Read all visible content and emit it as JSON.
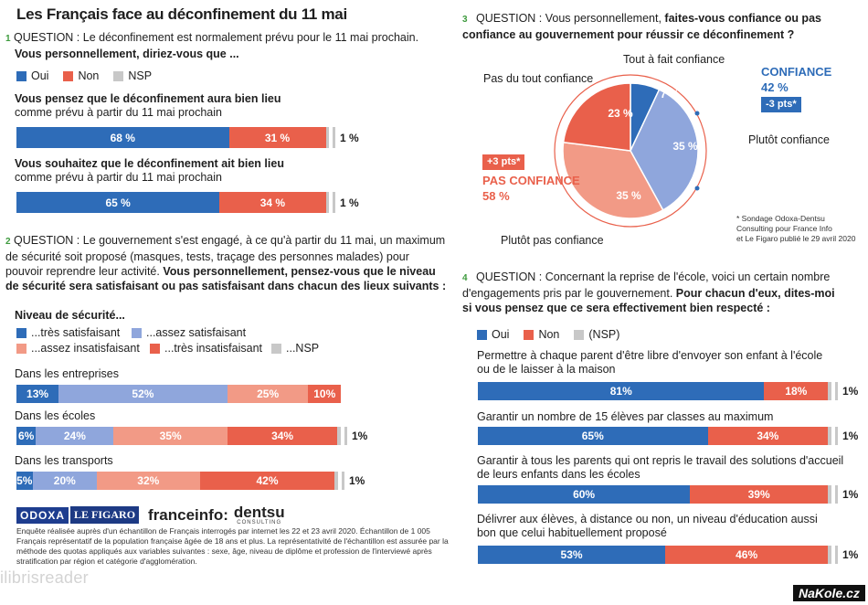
{
  "title": "Les Français face au déconfinement du 11 mai",
  "colors": {
    "oui": "#2e6cb8",
    "non": "#e9604b",
    "nsp": "#c8c8c8",
    "tres_satisfaisant": "#2e6cb8",
    "assez_satisfaisant": "#8fa6dc",
    "assez_insatisfaisant": "#f29a86",
    "tres_insatisfaisant": "#e9604b",
    "qnum": "#3d9a3d",
    "highlight_blue": "#2e6cb8",
    "highlight_red": "#e9604b"
  },
  "q1": {
    "num": "1",
    "text": "QUESTION : Le déconfinement est normalement prévu pour le 11 mai prochain.",
    "bold": "Vous personnellement, diriez-vous que ...",
    "legend": [
      {
        "label": "Oui",
        "color": "#2e6cb8"
      },
      {
        "label": "Non",
        "color": "#e9604b"
      },
      {
        "label": "NSP",
        "color": "#c8c8c8"
      }
    ],
    "items": [
      {
        "bold": "Vous pensez que le déconfinement aura bien lieu",
        "rest": "comme prévu à partir du 11 mai prochain",
        "labels": [
          "68 %",
          "31 %"
        ],
        "nsp": "1 %"
      },
      {
        "bold": "Vous souhaitez que le déconfinement ait bien lieu",
        "rest": "comme prévu à partir du 11 mai prochain",
        "labels": [
          "65 %",
          "34 %"
        ],
        "nsp": "1 %"
      }
    ]
  },
  "q2": {
    "num": "2",
    "text": "QUESTION : Le gouvernement s'est engagé, à ce qu'à partir du 11 mai, un maximum de sécurité soit proposé (masques, tests, traçage des personnes malades) pour pouvoir reprendre leur activité.",
    "bold": "Vous personnellement, pensez-vous que le niveau de sécurité sera satisfaisant ou pas satisfaisant dans chacun des lieux suivants :",
    "legend_title": "Niveau de sécurité...",
    "legend": [
      {
        "label": "...très satisfaisant",
        "color": "#2e6cb8"
      },
      {
        "label": "...assez satisfaisant",
        "color": "#8fa6dc"
      },
      {
        "label": "...assez insatisfaisant",
        "color": "#f29a86"
      },
      {
        "label": "...très insatisfaisant",
        "color": "#e9604b"
      },
      {
        "label": "...NSP",
        "color": "#c8c8c8"
      }
    ],
    "items": [
      {
        "label": "Dans les entreprises",
        "labels": [
          "13%",
          "52%",
          "25%",
          "10%"
        ],
        "nsp": ""
      },
      {
        "label": "Dans les écoles",
        "labels": [
          "6%",
          "24%",
          "35%",
          "34%"
        ],
        "nsp": "1%"
      },
      {
        "label": "Dans les transports",
        "labels": [
          "5%",
          "20%",
          "32%",
          "42%"
        ],
        "nsp": "1%"
      }
    ]
  },
  "q3": {
    "num": "3",
    "text": "QUESTION : Vous personnellement,",
    "bold": "faites-vous confiance ou pas confiance au gouvernement pour réussir ce déconfinement ?",
    "slices": [
      {
        "label": "Tout à fait confiance",
        "value_label": "7 %",
        "color": "#2e6cb8"
      },
      {
        "label": "Plutôt confiance",
        "value_label": "35 %",
        "color": "#8fa6dc"
      },
      {
        "label": "Plutôt pas confiance",
        "value_label": "35 %",
        "color": "#f29a86"
      },
      {
        "label": "Pas du tout confiance",
        "value_label": "23 %",
        "color": "#e9604b"
      }
    ],
    "confiance_title": "CONFIANCE",
    "confiance_value": "42 %",
    "confiance_delta": "-3 pts*",
    "pas_confiance_title": "PAS CONFIANCE",
    "pas_confiance_value": "58 %",
    "pas_confiance_delta": "+3 pts*",
    "footnote_lines": [
      "* Sondage Odoxa-Dentsu",
      "Consulting pour France Info",
      "et Le Figaro publié le 29 avril 2020"
    ]
  },
  "q4": {
    "num": "4",
    "text": "QUESTION : Concernant la reprise de l'école, voici un certain nombre d'engagements pris par le gouvernement.",
    "bold": "Pour chacun d'eux, dites-moi si vous pensez que ce sera effectivement bien respecté :",
    "legend": [
      {
        "label": "Oui",
        "color": "#2e6cb8"
      },
      {
        "label": "Non",
        "color": "#e9604b"
      },
      {
        "label": "(NSP)",
        "color": "#c8c8c8"
      }
    ],
    "items": [
      {
        "line1": "Permettre à chaque parent d'être libre d'envoyer son enfant à l'école",
        "line2": "ou de le laisser à la maison",
        "labels": [
          "81%",
          "18%"
        ],
        "nsp": "1%"
      },
      {
        "line1": "Garantir un nombre de 15 élèves par classes au maximum",
        "line2": "",
        "labels": [
          "65%",
          "34%"
        ],
        "nsp": "1%"
      },
      {
        "line1": "Garantir à tous les parents qui ont repris le travail des solutions d'accueil",
        "line2": "de leurs enfants dans les écoles",
        "labels": [
          "60%",
          "39%"
        ],
        "nsp": "1%"
      },
      {
        "line1": "Délivrer aux élèves, à distance ou non, un niveau d'éducation aussi",
        "line2": "bon que celui habituellement proposé",
        "labels": [
          "53%",
          "46%"
        ],
        "nsp": "1%"
      }
    ]
  },
  "logos": {
    "odoxa": "ODOXA",
    "figaro": "LE FIGARO",
    "franceinfo": "franceinfo:",
    "dentsu": "dentsu",
    "dentsu_sub": "CONSULTING"
  },
  "footnote": "Enquête réalisée auprès d'un échantillon de Français interrogés par internet les 22 et 23 avril 2020. Échantillon de 1 005 Français représentatif de la population française âgée de 18 ans et plus. La représentativité de l'échantillon est assurée par la méthode des quotas appliqués aux variables suivantes : sexe, âge, niveau de diplôme et profession de l'interviewé après stratification par région et catégorie d'agglomération.",
  "watermark": "ilibrisreader",
  "nakole": "NaKole.cz",
  "chart_data": [
    {
      "type": "bar",
      "title": "Les Français face au déconfinement du 11 mai",
      "categories": [
        "Vous pensez que le déconfinement aura bien lieu comme prévu à partir du 11 mai prochain",
        "Vous souhaitez que le déconfinement ait bien lieu comme prévu à partir du 11 mai prochain"
      ],
      "series": [
        {
          "name": "Oui",
          "values": [
            68,
            65
          ]
        },
        {
          "name": "Non",
          "values": [
            31,
            34
          ]
        },
        {
          "name": "NSP",
          "values": [
            1,
            1
          ]
        }
      ]
    },
    {
      "type": "bar",
      "categories": [
        "Dans les entreprises",
        "Dans les écoles",
        "Dans les transports"
      ],
      "series": [
        {
          "name": "...très satisfaisant",
          "values": [
            13,
            6,
            5
          ]
        },
        {
          "name": "...assez satisfaisant",
          "values": [
            52,
            24,
            20
          ]
        },
        {
          "name": "...assez insatisfaisant",
          "values": [
            25,
            35,
            32
          ]
        },
        {
          "name": "...très insatisfaisant",
          "values": [
            10,
            34,
            42
          ]
        },
        {
          "name": "...NSP",
          "values": [
            0,
            1,
            1
          ]
        }
      ]
    },
    {
      "type": "pie",
      "categories": [
        "Tout à fait confiance",
        "Plutôt confiance",
        "Plutôt pas confiance",
        "Pas du tout confiance"
      ],
      "values": [
        7,
        35,
        35,
        23
      ]
    },
    {
      "type": "bar",
      "categories": [
        "Permettre à chaque parent d'être libre d'envoyer son enfant à l'école ou de le laisser à la maison",
        "Garantir un nombre de 15 élèves par classes au maximum",
        "Garantir à tous les parents qui ont repris le travail des solutions d'accueil de leurs enfants dans les écoles",
        "Délivrer aux élèves, à distance ou non, un niveau d'éducation aussi bon que celui habituellement proposé"
      ],
      "series": [
        {
          "name": "Oui",
          "values": [
            81,
            65,
            60,
            53
          ]
        },
        {
          "name": "Non",
          "values": [
            18,
            34,
            39,
            46
          ]
        },
        {
          "name": "(NSP)",
          "values": [
            1,
            1,
            1,
            1
          ]
        }
      ]
    }
  ]
}
